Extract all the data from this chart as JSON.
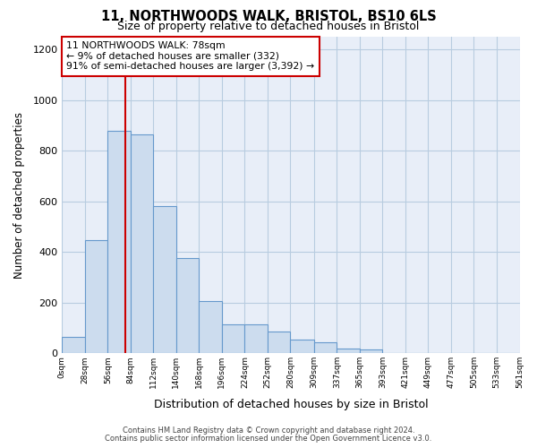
{
  "title": "11, NORTHWOODS WALK, BRISTOL, BS10 6LS",
  "subtitle": "Size of property relative to detached houses in Bristol",
  "xlabel": "Distribution of detached houses by size in Bristol",
  "ylabel": "Number of detached properties",
  "bar_left_edges": [
    0,
    28,
    56,
    84,
    112,
    140,
    168,
    196,
    224,
    252,
    280,
    309,
    337,
    365,
    393,
    421,
    449,
    477,
    505,
    533
  ],
  "bar_heights": [
    65,
    445,
    880,
    865,
    580,
    375,
    205,
    115,
    115,
    85,
    55,
    45,
    18,
    15,
    0,
    0,
    0,
    0,
    0,
    0
  ],
  "bin_widths": [
    28,
    28,
    28,
    28,
    28,
    28,
    28,
    28,
    28,
    28,
    29,
    28,
    28,
    28,
    28,
    28,
    28,
    28,
    28,
    28
  ],
  "tick_labels": [
    "0sqm",
    "28sqm",
    "56sqm",
    "84sqm",
    "112sqm",
    "140sqm",
    "168sqm",
    "196sqm",
    "224sqm",
    "252sqm",
    "280sqm",
    "309sqm",
    "337sqm",
    "365sqm",
    "393sqm",
    "421sqm",
    "449sqm",
    "477sqm",
    "505sqm",
    "533sqm",
    "561sqm"
  ],
  "bar_color": "#ccdcee",
  "bar_edge_color": "#6699cc",
  "grid_color": "#b8cce0",
  "bg_color": "#e8eef8",
  "plot_bg_color": "#e8eef8",
  "vline_x": 78,
  "vline_color": "#cc0000",
  "annotation_line1": "11 NORTHWOODS WALK: 78sqm",
  "annotation_line2": "← 9% of detached houses are smaller (332)",
  "annotation_line3": "91% of semi-detached houses are larger (3,392) →",
  "annotation_box_color": "#ffffff",
  "annotation_box_edge": "#cc0000",
  "ylim": [
    0,
    1250
  ],
  "yticks": [
    0,
    200,
    400,
    600,
    800,
    1000,
    1200
  ],
  "footer1": "Contains HM Land Registry data © Crown copyright and database right 2024.",
  "footer2": "Contains public sector information licensed under the Open Government Licence v3.0."
}
